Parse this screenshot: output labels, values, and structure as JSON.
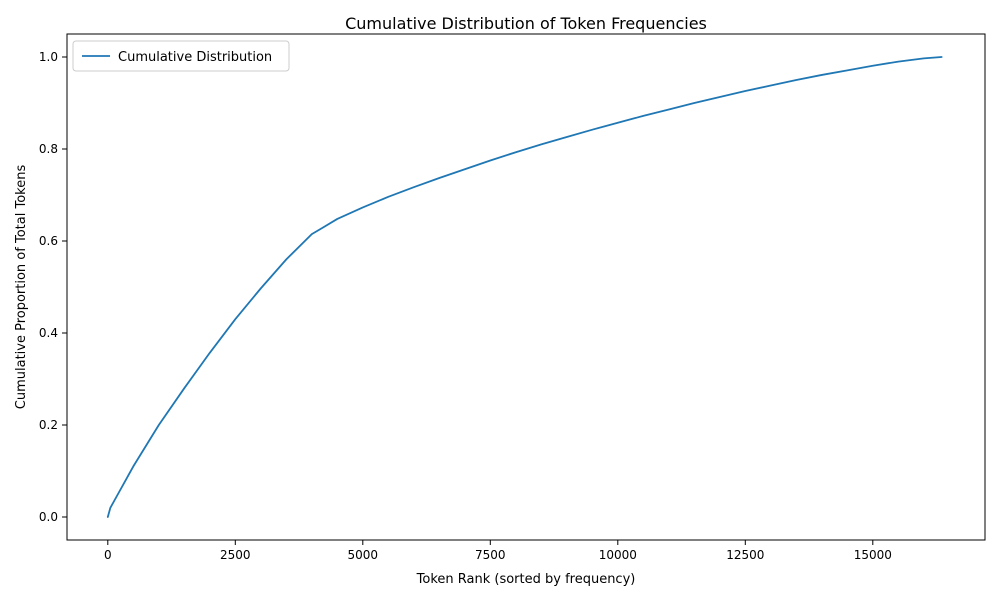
{
  "chart_data": {
    "type": "line",
    "title": "Cumulative Distribution of Token Frequencies",
    "xlabel": "Token Rank (sorted by frequency)",
    "ylabel": "Cumulative Proportion of Total Tokens",
    "xlim": [
      -800,
      17200
    ],
    "ylim": [
      -0.05,
      1.05
    ],
    "x_ticks": [
      0,
      2500,
      5000,
      7500,
      10000,
      12500,
      15000
    ],
    "x_tick_labels": [
      "0",
      "2500",
      "5000",
      "7500",
      "10000",
      "12500",
      "15000"
    ],
    "y_ticks": [
      0.0,
      0.2,
      0.4,
      0.6,
      0.8,
      1.0
    ],
    "y_tick_labels": [
      "0.0",
      "0.2",
      "0.4",
      "0.6",
      "0.8",
      "1.0"
    ],
    "grid": false,
    "legend_position": "top-left",
    "series": [
      {
        "name": "Cumulative Distribution",
        "color": "#1f77b4",
        "x": [
          0,
          50,
          200,
          500,
          1000,
          1500,
          2000,
          2500,
          3000,
          3500,
          4000,
          4200,
          4500,
          5000,
          5500,
          6000,
          6500,
          7000,
          7500,
          8000,
          8500,
          9000,
          9500,
          10000,
          10500,
          11000,
          11500,
          12000,
          12500,
          13000,
          13500,
          14000,
          14500,
          15000,
          15500,
          16000,
          16350
        ],
        "y": [
          0.0,
          0.02,
          0.05,
          0.11,
          0.2,
          0.28,
          0.357,
          0.43,
          0.497,
          0.56,
          0.615,
          0.628,
          0.648,
          0.673,
          0.696,
          0.717,
          0.737,
          0.756,
          0.775,
          0.793,
          0.81,
          0.826,
          0.842,
          0.857,
          0.872,
          0.886,
          0.9,
          0.913,
          0.926,
          0.938,
          0.95,
          0.961,
          0.971,
          0.981,
          0.99,
          0.997,
          1.0
        ]
      }
    ]
  }
}
